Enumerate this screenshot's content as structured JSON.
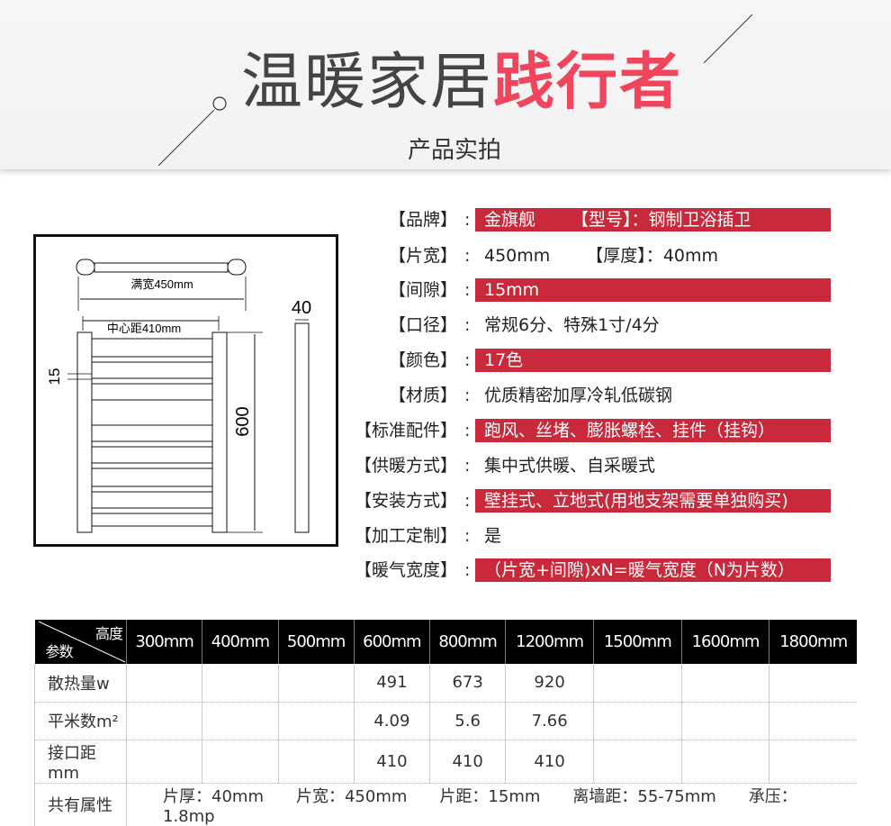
{
  "header": {
    "title_light": "温暖家居",
    "title_bold": "践行者",
    "subtitle": "产品实拍"
  },
  "diagram": {
    "full_width": "满宽450mm",
    "center_distance": "中心距410mm",
    "gap": "15",
    "height": "600",
    "thickness": "40"
  },
  "specs": [
    {
      "label": "【品牌】",
      "value": "金旗舰",
      "extra_label": "【型号】：",
      "extra_value": "钢制卫浴插卫",
      "highlight": true
    },
    {
      "label": "【片宽】",
      "value": "450mm",
      "extra_label": "【厚度】：",
      "extra_value": "40mm",
      "highlight": false
    },
    {
      "label": "【间隙】",
      "value": "15mm",
      "highlight": true
    },
    {
      "label": "【口径】",
      "value": "常规6分、特殊1寸/4分",
      "highlight": false
    },
    {
      "label": "【颜色】",
      "value": "17色",
      "highlight": true
    },
    {
      "label": "【材质】",
      "value": "优质精密加厚冷轧低碳钢",
      "highlight": false
    },
    {
      "label": "【标准配件】",
      "value": "跑风、丝堵、膨胀螺栓、挂件（挂钩）",
      "highlight": true
    },
    {
      "label": "【供暖方式】",
      "value": "集中式供暖、自采暖式",
      "highlight": false
    },
    {
      "label": "【安装方式】",
      "value": "壁挂式、立地式(用地支架需要单独购买)",
      "highlight": true
    },
    {
      "label": "【加工定制】",
      "value": "是",
      "highlight": false
    },
    {
      "label": "【暖气宽度】",
      "value": "（片宽+间隙)xN=暖气宽度（N为片数）",
      "highlight": true
    }
  ],
  "table": {
    "corner_top": "高度",
    "corner_bottom": "参数",
    "columns": [
      "300mm",
      "400mm",
      "500mm",
      "600mm",
      "800mm",
      "1200mm",
      "1500mm",
      "1600mm",
      "1800mm"
    ],
    "rows": [
      {
        "label": "散热量w",
        "cells": [
          "",
          "",
          "",
          "491",
          "673",
          "920",
          "",
          "",
          ""
        ]
      },
      {
        "label": "平米数m²",
        "cells": [
          "",
          "",
          "",
          "4.09",
          "5.6",
          "7.66",
          "",
          "",
          ""
        ]
      },
      {
        "label": "接口距mm",
        "cells": [
          "",
          "",
          "",
          "410",
          "410",
          "410",
          "",
          "",
          ""
        ]
      }
    ],
    "shared_label": "共有属性",
    "shared": [
      "片厚：40mm",
      "片宽：450mm",
      "片距：15mm",
      "离墙距：55-75mm",
      "承压：1.8mp"
    ]
  },
  "colors": {
    "accent": "#f0455c",
    "bar": "#c8293b",
    "header_bg": "#000000"
  }
}
